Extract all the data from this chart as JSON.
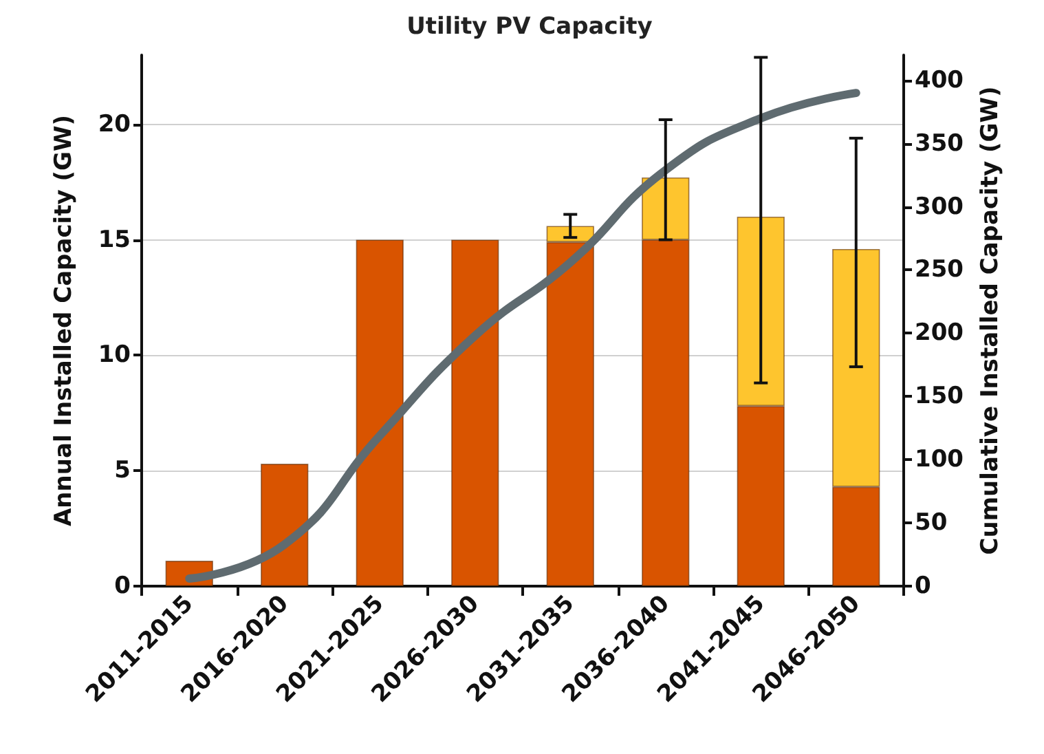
{
  "chart_data": {
    "type": "bar",
    "title": "Utility PV Capacity",
    "ylabel": "Annual Installed Capacity (GW)",
    "y2label": "Cumulative Installed Capacity (GW)",
    "categories": [
      "2011-2015",
      "2016-2020",
      "2021-2025",
      "2026-2030",
      "2031-2035",
      "2036-2040",
      "2041-2045",
      "2046-2050"
    ],
    "stacked": true,
    "series": [
      {
        "color": "#d95400",
        "values": [
          1.1,
          5.3,
          15,
          15,
          14.9,
          15,
          7.8,
          4.3
        ]
      },
      {
        "color": "#fec52e",
        "values": [
          null,
          null,
          null,
          null,
          0.7,
          2.7,
          8.2,
          10.3
        ],
        "errors": [
          null,
          null,
          null,
          null,
          [
            15.1,
            16.1
          ],
          [
            15.0,
            20.2
          ],
          [
            8.8,
            22.9
          ],
          [
            9.5,
            19.4
          ]
        ]
      },
      {
        "type": "line",
        "axis": "y2",
        "color": "#5f6b70",
        "values": [
          6,
          33,
          119,
          198,
          256,
          329,
          370,
          390
        ]
      }
    ],
    "ylim": [
      0,
      23
    ],
    "yticks": [
      0,
      5,
      10,
      15,
      20
    ],
    "y2lim": [
      0,
      420
    ],
    "y2ticks": [
      0,
      50,
      100,
      150,
      200,
      250,
      300,
      350,
      400
    ],
    "grid": "y",
    "marker": "none"
  }
}
